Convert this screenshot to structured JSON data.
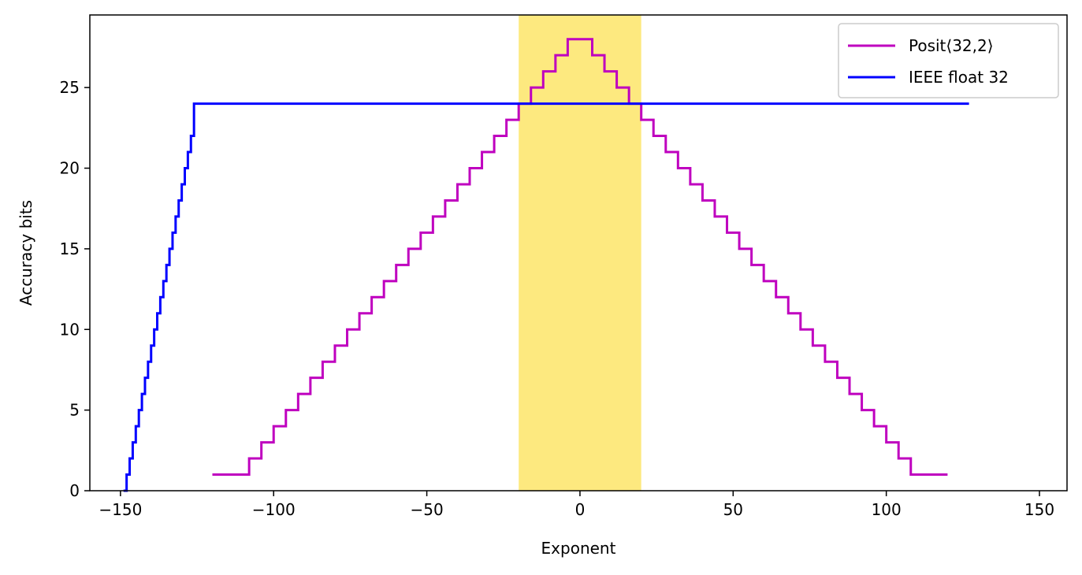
{
  "chart_data": {
    "type": "line",
    "step": true,
    "title": "",
    "xlabel": "Exponent",
    "ylabel": "Accuracy bits",
    "xlim": [
      -160,
      159
    ],
    "ylim": [
      0,
      29.5
    ],
    "xticks": [
      -150,
      -100,
      -50,
      0,
      50,
      100,
      150
    ],
    "xtick_labels": [
      "−150",
      "−100",
      "−50",
      "0",
      "50",
      "100",
      "150"
    ],
    "yticks": [
      0,
      5,
      10,
      15,
      20,
      25
    ],
    "ytick_labels": [
      "0",
      "5",
      "10",
      "15",
      "20",
      "25"
    ],
    "grid": false,
    "legend_position": "top-right",
    "highlight_band": {
      "x_range": [
        -20,
        20
      ],
      "color": "#fde97f"
    },
    "series": [
      {
        "name": "Posit⟨32,2⟩",
        "color": "#bf00bf",
        "x": [
          -120,
          -108,
          -104,
          -100,
          -96,
          -92,
          -88,
          -84,
          -80,
          -76,
          -72,
          -68,
          -64,
          -60,
          -56,
          -52,
          -48,
          -44,
          -40,
          -36,
          -32,
          -28,
          -24,
          -20,
          -16,
          -12,
          -8,
          -4,
          4,
          8,
          12,
          16,
          20,
          24,
          28,
          32,
          36,
          40,
          44,
          48,
          52,
          56,
          60,
          64,
          68,
          72,
          76,
          80,
          84,
          88,
          92,
          96,
          100,
          104,
          108,
          120
        ],
        "y": [
          1,
          2,
          3,
          4,
          5,
          6,
          7,
          8,
          9,
          10,
          11,
          12,
          13,
          14,
          15,
          16,
          17,
          18,
          19,
          20,
          21,
          22,
          23,
          24,
          25,
          26,
          27,
          28,
          27,
          26,
          25,
          24,
          23,
          22,
          21,
          20,
          19,
          18,
          17,
          16,
          15,
          14,
          13,
          12,
          11,
          10,
          9,
          8,
          7,
          6,
          5,
          4,
          3,
          2,
          1,
          1
        ]
      },
      {
        "name": "IEEE float 32",
        "color": "#0000ff",
        "x": [
          -149,
          -148,
          -147,
          -146,
          -145,
          -144,
          -143,
          -142,
          -141,
          -140,
          -139,
          -138,
          -137,
          -136,
          -135,
          -134,
          -133,
          -132,
          -131,
          -130,
          -129,
          -128,
          -127,
          -126,
          127
        ],
        "y": [
          0,
          1,
          2,
          3,
          4,
          5,
          6,
          7,
          8,
          9,
          10,
          11,
          12,
          13,
          14,
          15,
          16,
          17,
          18,
          19,
          20,
          21,
          22,
          24,
          24
        ]
      }
    ]
  }
}
